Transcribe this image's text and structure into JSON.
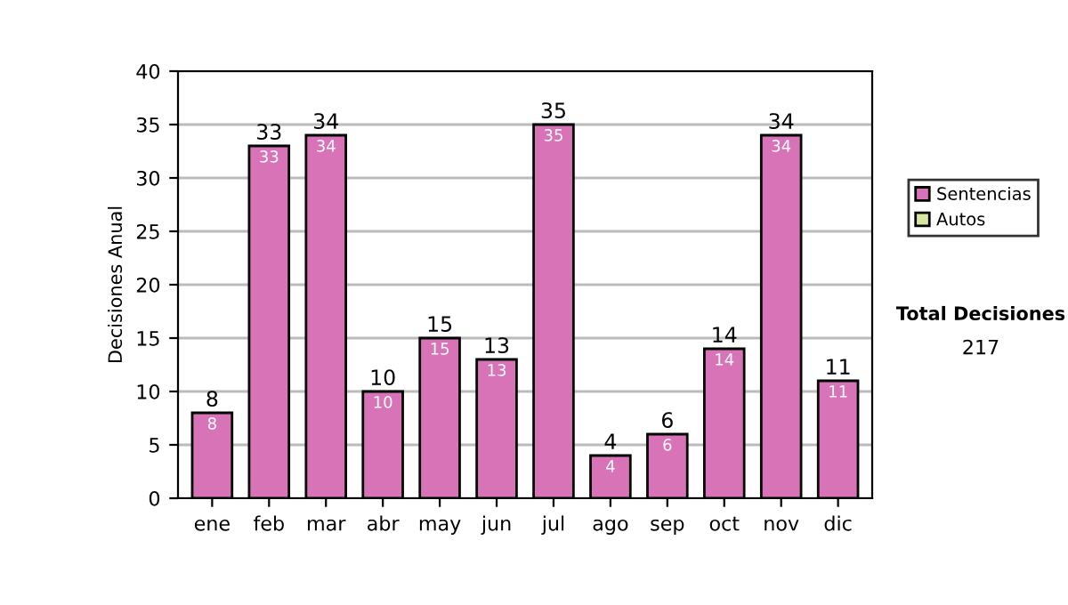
{
  "chart_data": {
    "type": "bar",
    "ylabel": "Decisiones Anual",
    "stacked": true,
    "categories": [
      "ene",
      "feb",
      "mar",
      "abr",
      "may",
      "jun",
      "jul",
      "ago",
      "sep",
      "oct",
      "nov",
      "dic"
    ],
    "series": [
      {
        "name": "Sentencias",
        "color": "#d873b8",
        "values": [
          8,
          33,
          34,
          10,
          15,
          13,
          35,
          4,
          6,
          14,
          34,
          11
        ],
        "value_labels": [
          "8",
          "33",
          "34",
          "10",
          "15",
          "13",
          "35",
          "4",
          "6",
          "14",
          "34",
          "11"
        ]
      },
      {
        "name": "Autos",
        "color": "#d6e8a0",
        "values": [
          0,
          0,
          0,
          0,
          0,
          0,
          0,
          0,
          0,
          0,
          0,
          0
        ]
      }
    ],
    "totals": [
      "8",
      "33",
      "34",
      "10",
      "15",
      "13",
      "35",
      "4",
      "6",
      "14",
      "34",
      "11"
    ],
    "ylim": [
      0,
      40
    ],
    "yticks": [
      0,
      5,
      10,
      15,
      20,
      25,
      30,
      35,
      40
    ],
    "grid": "y",
    "legend": "right",
    "annotations": [
      "Total Decisiones",
      "217"
    ]
  }
}
